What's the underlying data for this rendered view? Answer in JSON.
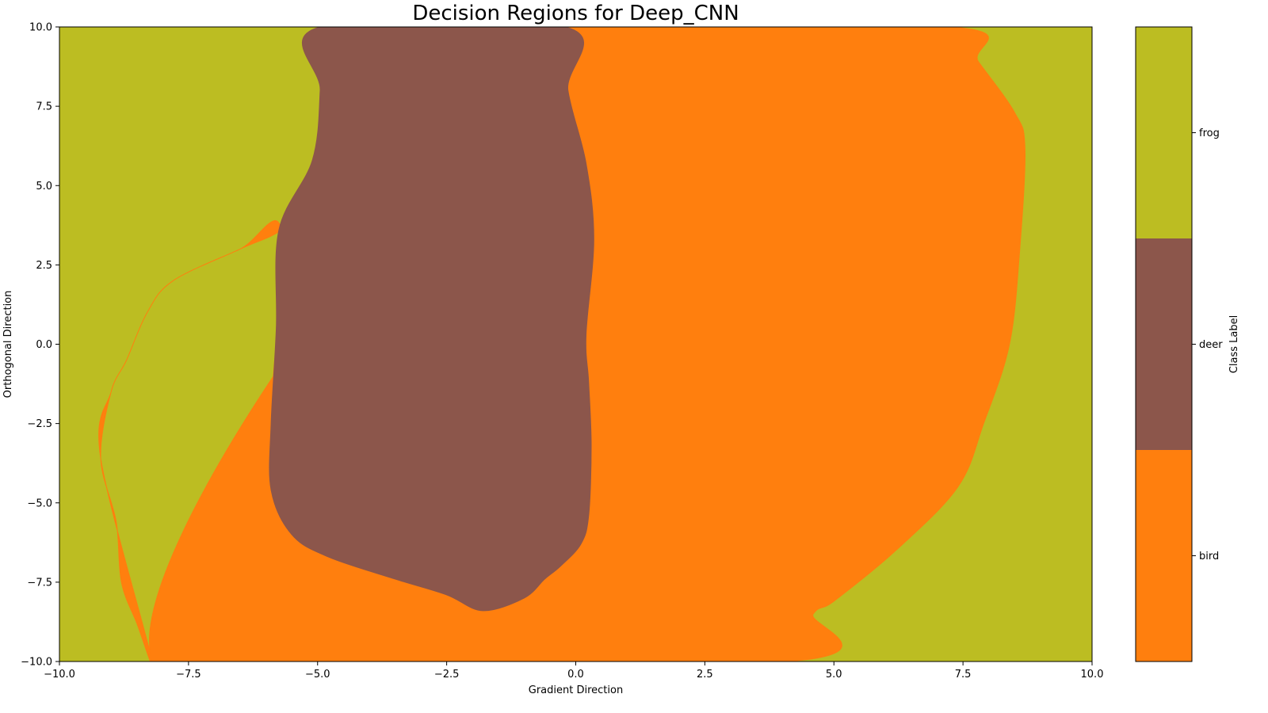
{
  "chart_data": {
    "type": "heatmap",
    "subtype": "decision-regions",
    "title": "Decision Regions for Deep_CNN",
    "xlabel": "Gradient Direction",
    "ylabel": "Orthogonal Direction",
    "xlim": [
      -10,
      10
    ],
    "ylim": [
      -10,
      10
    ],
    "xticks": [
      -10.0,
      -7.5,
      -5.0,
      -2.5,
      0.0,
      2.5,
      5.0,
      7.5,
      10.0
    ],
    "yticks": [
      -10.0,
      -7.5,
      -5.0,
      -2.5,
      0.0,
      2.5,
      5.0,
      7.5,
      10.0
    ],
    "xtick_labels": [
      "−10.0",
      "−7.5",
      "−5.0",
      "−2.5",
      "0.0",
      "2.5",
      "5.0",
      "7.5",
      "10.0"
    ],
    "ytick_labels": [
      "−10.0",
      "−7.5",
      "−5.0",
      "−2.5",
      "0.0",
      "2.5",
      "5.0",
      "7.5",
      "10.0"
    ],
    "grid": false,
    "classes": [
      {
        "label": "bird",
        "color": "#ff7f0e"
      },
      {
        "label": "deer",
        "color": "#8c564b"
      },
      {
        "label": "frog",
        "color": "#bcbd22"
      }
    ],
    "background_class": "frog",
    "colorbar": {
      "label": "Class Label",
      "position": "right",
      "order_bottom_to_top": [
        "bird",
        "deer",
        "frog"
      ]
    },
    "regions": [
      {
        "class": "bird",
        "boundary": [
          [
            -8.2,
            -10
          ],
          [
            -8.5,
            -8.8
          ],
          [
            -8.8,
            -7.5
          ],
          [
            -8.9,
            -5.6
          ],
          [
            -9.2,
            -3.6
          ],
          [
            -9.0,
            -1.5
          ],
          [
            -8.7,
            -0.5
          ],
          [
            -8.3,
            1.0
          ],
          [
            -7.8,
            2.0
          ],
          [
            -6.5,
            3.0
          ],
          [
            -5.7,
            3.6
          ],
          [
            -5.0,
            4.7
          ],
          [
            -4.8,
            7.5
          ],
          [
            -4.9,
            10.0
          ],
          [
            -0.2,
            10.0
          ],
          [
            0.0,
            7.7
          ],
          [
            0.3,
            5.6
          ],
          [
            0.35,
            3.5
          ],
          [
            0.25,
            0.5
          ],
          [
            0.3,
            -1.5
          ],
          [
            0.25,
            -5.0
          ],
          [
            0.05,
            -6.3
          ],
          [
            -0.3,
            -7.2
          ],
          [
            -0.6,
            -7.6
          ],
          [
            -1.5,
            -8.5
          ],
          [
            -1.8,
            -8.4
          ],
          [
            -2.5,
            -7.9
          ],
          [
            -3.5,
            -7.3
          ],
          [
            -5.0,
            -6.8
          ],
          [
            -5.5,
            -6.0
          ],
          [
            -5.9,
            -4.8
          ],
          [
            -5.9,
            -2.0
          ],
          [
            -5.7,
            3.6
          ],
          [
            -6.5,
            3.0
          ],
          [
            -7.8,
            2.0
          ],
          [
            -8.3,
            1.0
          ],
          [
            -8.7,
            -0.5
          ],
          [
            -9.0,
            -1.5
          ],
          [
            -9.2,
            -3.6
          ]
        ]
      },
      {
        "class": "bird",
        "boundary": [
          [
            -0.2,
            10.0
          ],
          [
            7.3,
            10.0
          ],
          [
            7.8,
            8.9
          ],
          [
            8.5,
            7.3
          ],
          [
            8.7,
            6.2
          ],
          [
            8.6,
            3.0
          ],
          [
            8.4,
            0.0
          ],
          [
            7.9,
            -2.5
          ],
          [
            7.4,
            -4.5
          ],
          [
            6.2,
            -6.5
          ],
          [
            5.0,
            -8.1
          ],
          [
            4.6,
            -8.5
          ],
          [
            4.1,
            -10.0
          ],
          [
            -8.2,
            -10.0
          ]
        ]
      },
      {
        "class": "deer",
        "boundary": [
          [
            -4.95,
            10.0
          ],
          [
            -0.2,
            10.0
          ],
          [
            -0.15,
            8.0
          ],
          [
            0.2,
            5.7
          ],
          [
            0.35,
            3.3
          ],
          [
            0.2,
            0.3
          ],
          [
            0.25,
            -1.2
          ],
          [
            0.3,
            -3.2
          ],
          [
            0.25,
            -5.4
          ],
          [
            0.1,
            -6.3
          ],
          [
            -0.3,
            -7.0
          ],
          [
            -0.6,
            -7.4
          ],
          [
            -1.0,
            -8.0
          ],
          [
            -1.8,
            -8.4
          ],
          [
            -2.5,
            -7.9
          ],
          [
            -3.5,
            -7.4
          ],
          [
            -4.8,
            -6.7
          ],
          [
            -5.5,
            -6.0
          ],
          [
            -5.9,
            -4.6
          ],
          [
            -5.9,
            -2.5
          ],
          [
            -5.8,
            0.5
          ],
          [
            -5.75,
            3.6
          ],
          [
            -5.1,
            5.8
          ],
          [
            -4.95,
            8.0
          ]
        ]
      }
    ]
  }
}
